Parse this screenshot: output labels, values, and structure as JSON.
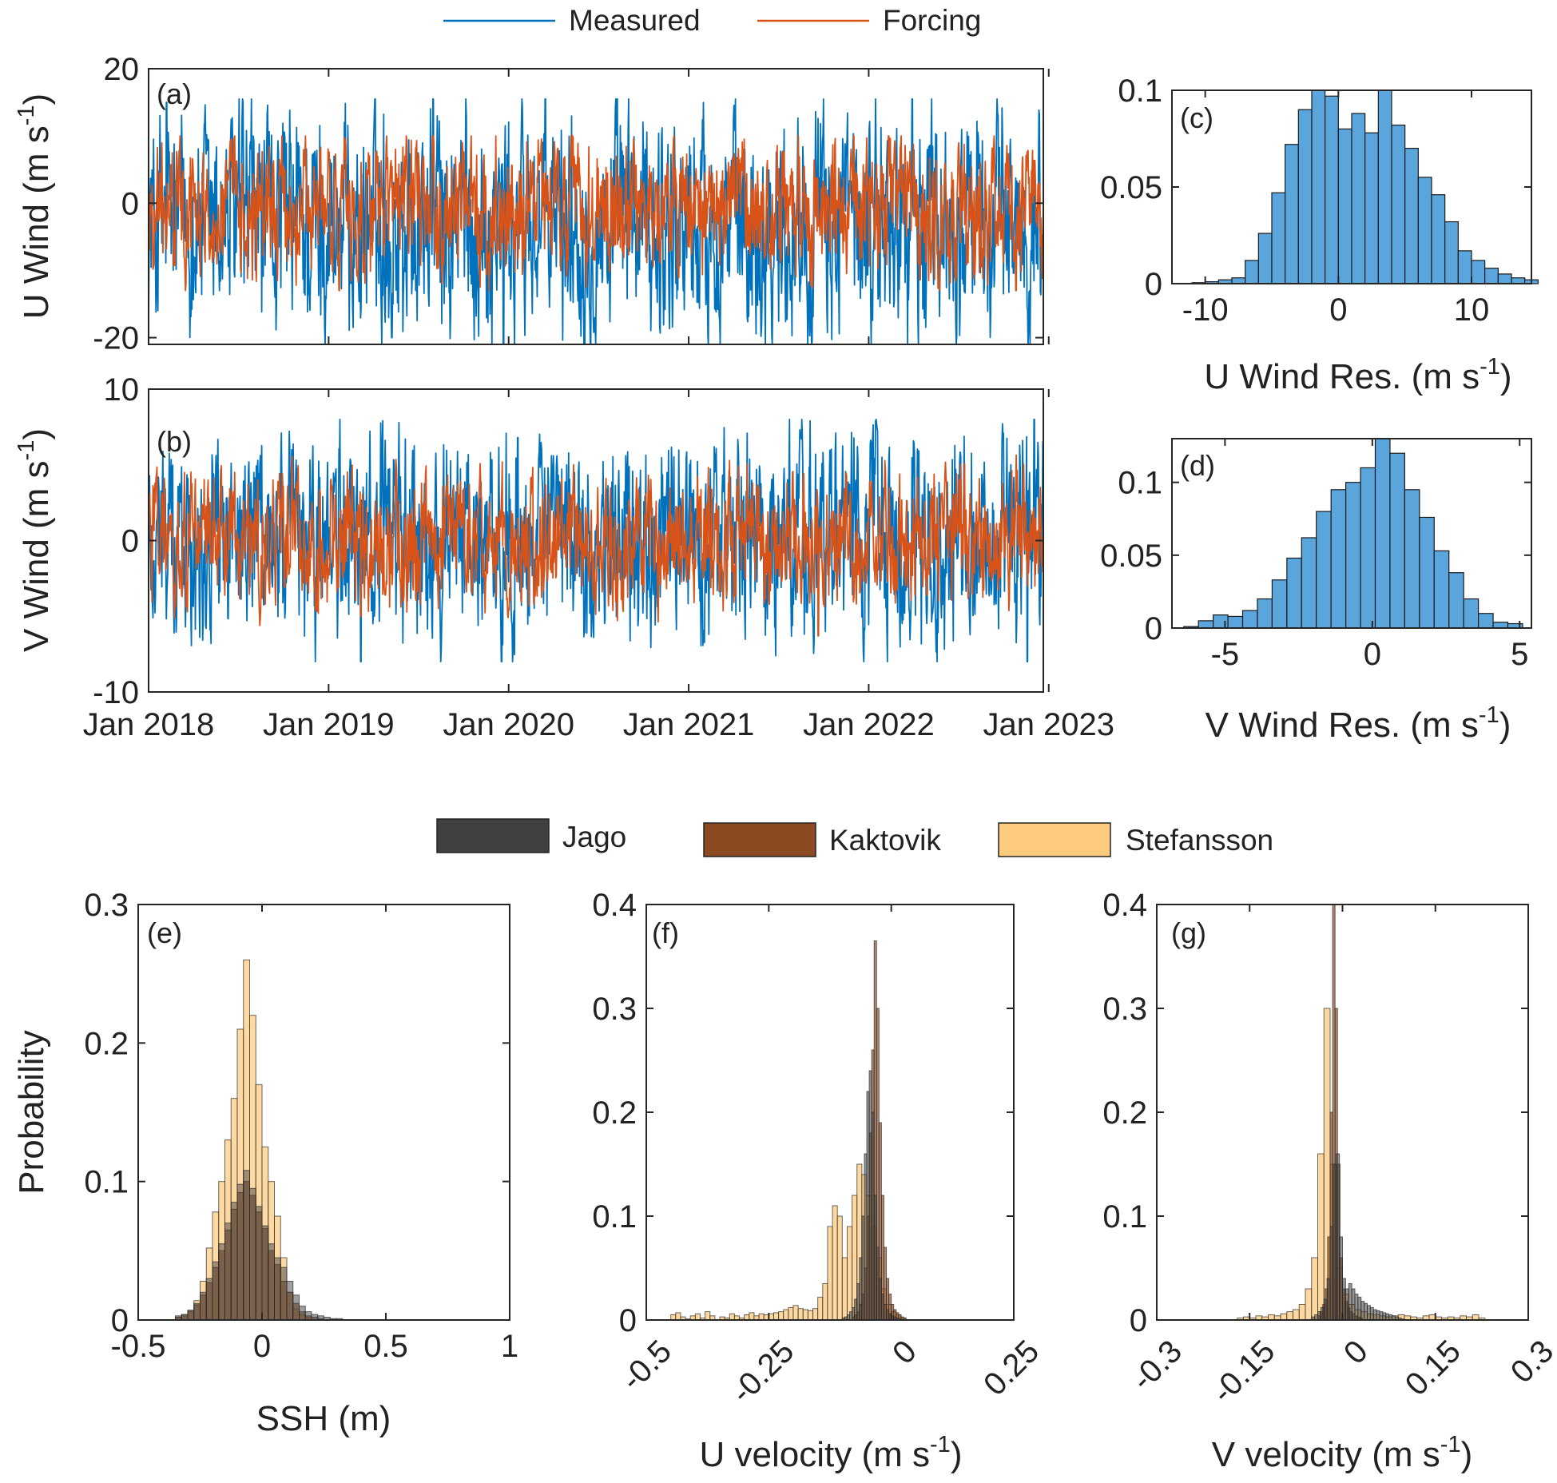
{
  "legend_top": {
    "items": [
      {
        "label": "Measured",
        "color": "#0072BD"
      },
      {
        "label": "Forcing",
        "color": "#D95319"
      }
    ]
  },
  "legend_bottom": {
    "items": [
      {
        "label": "Jago",
        "color": "#404040"
      },
      {
        "label": "Kaktovik",
        "color": "#8B4A22"
      },
      {
        "label": "Stefansson",
        "color": "#FDCB7E"
      }
    ]
  },
  "chart_data": [
    {
      "id": "a",
      "panel_label": "(a)",
      "type": "line",
      "ylabel_main": "U Wind (m s",
      "ylabel_sup": "-1",
      "ylabel_close": ")",
      "ylim": [
        -21,
        20
      ],
      "yticks": [
        {
          "v": -20,
          "label": "-20"
        },
        {
          "v": 0,
          "label": "0"
        },
        {
          "v": 20,
          "label": "20"
        }
      ],
      "x_range_years": [
        2018.0,
        2022.97
      ],
      "xtick_years": [
        2018,
        2019,
        2020,
        2021,
        2022,
        2023
      ],
      "series": [
        {
          "name": "Measured",
          "color": "#0072BD",
          "mean": -3,
          "amplitude": 14,
          "min": -21,
          "max": 15.5,
          "anomalies": [
            {
              "year": 2019.35,
              "value": -20
            },
            {
              "year": 2019.97,
              "value": -21
            },
            {
              "year": 2018.1,
              "value": 15
            },
            {
              "year": 2019.58,
              "value": 15.5
            }
          ]
        },
        {
          "name": "Forcing",
          "color": "#D95319",
          "mean": -1,
          "amplitude": 8,
          "min": -13,
          "max": 10
        }
      ]
    },
    {
      "id": "b",
      "panel_label": "(b)",
      "type": "line",
      "ylabel_main": "V Wind (m s",
      "ylabel_sup": "-1",
      "ylabel_close": ")",
      "ylim": [
        -10,
        10
      ],
      "yticks": [
        {
          "v": -10,
          "label": "-10"
        },
        {
          "v": 0,
          "label": "0"
        },
        {
          "v": 10,
          "label": "10"
        }
      ],
      "x_range_years": [
        2018.0,
        2022.97
      ],
      "xtick_years": [
        2018,
        2019,
        2020,
        2021,
        2022,
        2023
      ],
      "xtick_labels": [
        "Jan 2018",
        "Jan 2019",
        "Jan 2020",
        "Jan 2021",
        "Jan 2022",
        "Jan 2023"
      ],
      "series": [
        {
          "name": "Measured",
          "color": "#0072BD",
          "mean": 0,
          "amplitude": 5.5,
          "min": -8,
          "max": 8,
          "anomalies": [
            {
              "year": 2019.18,
              "value": -8
            },
            {
              "year": 2022.88,
              "value": -8
            },
            {
              "year": 2022.92,
              "value": 8
            },
            {
              "year": 2020.05,
              "value": 6.8
            }
          ]
        },
        {
          "name": "Forcing",
          "color": "#D95319",
          "mean": 0,
          "amplitude": 3.5,
          "min": -6.3,
          "max": 6,
          "anomalies": [
            {
              "year": 2021.72,
              "value": -6.3
            },
            {
              "year": 2019.18,
              "value": -5
            }
          ]
        }
      ]
    },
    {
      "id": "c",
      "panel_label": "(c)",
      "type": "histogram",
      "xlabel_main": "U Wind Res. (m s",
      "xlabel_sup": "-1",
      "xlabel_close": ")",
      "xlim": [
        -12.5,
        14.5
      ],
      "ylim": [
        0,
        0.1
      ],
      "xticks": [
        {
          "v": -10,
          "label": "-10"
        },
        {
          "v": 0,
          "label": "0"
        },
        {
          "v": 10,
          "label": "10"
        }
      ],
      "yticks": [
        {
          "v": 0,
          "label": "0"
        },
        {
          "v": 0.05,
          "label": "0.05"
        },
        {
          "v": 0.1,
          "label": "0.1"
        }
      ],
      "bin_start": -11,
      "bin_width": 1,
      "values": [
        0.0005,
        0.001,
        0.002,
        0.003,
        0.012,
        0.026,
        0.047,
        0.072,
        0.09,
        0.1,
        0.097,
        0.08,
        0.088,
        0.078,
        0.1,
        0.082,
        0.07,
        0.055,
        0.046,
        0.032,
        0.017,
        0.012,
        0.008,
        0.005,
        0.003,
        0.002
      ],
      "series_color": "#5AA6DC"
    },
    {
      "id": "d",
      "panel_label": "(d)",
      "type": "histogram",
      "xlabel_main": "V Wind Res. (m s",
      "xlabel_sup": "-1",
      "xlabel_close": ")",
      "xlim": [
        -6.8,
        5.4
      ],
      "ylim": [
        0,
        0.13
      ],
      "xticks": [
        {
          "v": -5,
          "label": "-5"
        },
        {
          "v": 0,
          "label": "0"
        },
        {
          "v": 5,
          "label": "5"
        }
      ],
      "yticks": [
        {
          "v": 0,
          "label": "0"
        },
        {
          "v": 0.05,
          "label": "0.05"
        },
        {
          "v": 0.1,
          "label": "0.1"
        }
      ],
      "bin_start": -6.4,
      "bin_width": 0.5,
      "values": [
        0.001,
        0.005,
        0.009,
        0.008,
        0.012,
        0.02,
        0.033,
        0.048,
        0.062,
        0.08,
        0.095,
        0.1,
        0.11,
        0.13,
        0.12,
        0.095,
        0.076,
        0.053,
        0.038,
        0.02,
        0.01,
        0.004,
        0.003
      ],
      "series_color": "#5AA6DC"
    },
    {
      "id": "e",
      "panel_label": "(e)",
      "type": "histogram",
      "ylabel": "Probability",
      "xlabel": "SSH (m)",
      "xlim": [
        -0.5,
        1
      ],
      "ylim": [
        0,
        0.3
      ],
      "xticks": [
        {
          "v": -0.5,
          "label": "-0.5"
        },
        {
          "v": 0,
          "label": "0"
        },
        {
          "v": 0.5,
          "label": "0.5"
        },
        {
          "v": 1,
          "label": "1"
        }
      ],
      "yticks": [
        {
          "v": 0,
          "label": "0"
        },
        {
          "v": 0.1,
          "label": "0.1"
        },
        {
          "v": 0.2,
          "label": "0.2"
        },
        {
          "v": 0.3,
          "label": "0.3"
        }
      ],
      "bin_start": -0.35,
      "bin_width": 0.025,
      "series": [
        {
          "name": "Stefansson",
          "color": "#FDCB7E",
          "opacity": 0.72,
          "values": [
            0.002,
            0.004,
            0.007,
            0.014,
            0.028,
            0.052,
            0.078,
            0.1,
            0.13,
            0.16,
            0.21,
            0.26,
            0.22,
            0.17,
            0.125,
            0.1,
            0.075,
            0.045,
            0.02,
            0.008,
            0.004,
            0.002
          ]
        },
        {
          "name": "Kaktovik",
          "color": "#8B4A22",
          "opacity": 0.6,
          "values": [
            0.002,
            0.003,
            0.006,
            0.011,
            0.018,
            0.027,
            0.038,
            0.05,
            0.065,
            0.08,
            0.092,
            0.1,
            0.09,
            0.078,
            0.066,
            0.05,
            0.04,
            0.028,
            0.02,
            0.012,
            0.006,
            0.003,
            0.002,
            0.001
          ]
        },
        {
          "name": "Jago",
          "color": "#404040",
          "opacity": 0.5,
          "values": [
            0.003,
            0.004,
            0.007,
            0.012,
            0.02,
            0.03,
            0.042,
            0.055,
            0.07,
            0.085,
            0.098,
            0.108,
            0.095,
            0.082,
            0.068,
            0.055,
            0.045,
            0.038,
            0.028,
            0.018,
            0.01,
            0.006,
            0.004,
            0.003,
            0.002,
            0.001,
            0.001
          ]
        }
      ]
    },
    {
      "id": "f",
      "panel_label": "(f)",
      "type": "histogram",
      "xlabel_main": "U velocity (m s",
      "xlabel_sup": "-1",
      "xlabel_close": ")",
      "xlim": [
        -0.5,
        0.25
      ],
      "ylim": [
        0,
        0.4
      ],
      "xticks": [
        {
          "v": -0.5,
          "label": "-0.5"
        },
        {
          "v": -0.25,
          "label": "-0.25"
        },
        {
          "v": 0,
          "label": "0"
        },
        {
          "v": 0.25,
          "label": "0.25"
        }
      ],
      "yticks": [
        {
          "v": 0,
          "label": "0"
        },
        {
          "v": 0.1,
          "label": "0.1"
        },
        {
          "v": 0.2,
          "label": "0.2"
        },
        {
          "v": 0.3,
          "label": "0.3"
        },
        {
          "v": 0.4,
          "label": "0.4"
        }
      ],
      "series": [
        {
          "name": "Stefansson",
          "color": "#FDCB7E",
          "opacity": 0.75,
          "bin_start": -0.45,
          "bin_width": 0.01,
          "values": [
            0.005,
            0.007,
            0.003,
            0.001,
            0.004,
            0.006,
            0.002,
            0.008,
            0.004,
            0.0,
            0.003,
            0.002,
            0.006,
            0.004,
            0.002,
            0.005,
            0.007,
            0.004,
            0.006,
            0.005,
            0.006,
            0.007,
            0.008,
            0.01,
            0.012,
            0.014,
            0.011,
            0.01,
            0.009,
            0.011,
            0.022,
            0.035,
            0.09,
            0.11,
            0.1,
            0.06,
            0.09,
            0.12,
            0.15,
            0.14,
            0.12,
            0.09,
            0.06,
            0.03,
            0.015,
            0.008,
            0.005,
            0.002
          ]
        },
        {
          "name": "Kaktovik",
          "color": "#8B4A22",
          "opacity": 0.65,
          "bin_start": -0.08,
          "bin_width": 0.005,
          "values": [
            0.003,
            0.005,
            0.008,
            0.015,
            0.025,
            0.05,
            0.1,
            0.18,
            0.26,
            0.365,
            0.3,
            0.19,
            0.12,
            0.07,
            0.04,
            0.025,
            0.015,
            0.01,
            0.007,
            0.005,
            0.003,
            0.002
          ]
        },
        {
          "name": "Jago",
          "color": "#404040",
          "opacity": 0.55,
          "bin_start": -0.1,
          "bin_width": 0.005,
          "values": [
            0.002,
            0.003,
            0.005,
            0.008,
            0.012,
            0.02,
            0.035,
            0.06,
            0.1,
            0.16,
            0.22,
            0.24,
            0.2,
            0.12,
            0.07,
            0.04,
            0.025,
            0.015,
            0.01,
            0.006,
            0.004,
            0.003,
            0.002,
            0.001
          ]
        }
      ]
    },
    {
      "id": "g",
      "panel_label": "(g)",
      "type": "histogram",
      "xlabel_main": "V velocity (m s",
      "xlabel_sup": "-1",
      "xlabel_close": ")",
      "xlim": [
        -0.3,
        0.3
      ],
      "ylim": [
        0,
        0.4
      ],
      "xticks": [
        {
          "v": -0.3,
          "label": "-0.3"
        },
        {
          "v": -0.15,
          "label": "-0.15"
        },
        {
          "v": 0,
          "label": "0"
        },
        {
          "v": 0.15,
          "label": "0.15"
        },
        {
          "v": 0.3,
          "label": "0.3"
        }
      ],
      "yticks": [
        {
          "v": 0,
          "label": "0"
        },
        {
          "v": 0.1,
          "label": "0.1"
        },
        {
          "v": 0.2,
          "label": "0.2"
        },
        {
          "v": 0.3,
          "label": "0.3"
        },
        {
          "v": 0.4,
          "label": "0.4"
        }
      ],
      "series": [
        {
          "name": "Stefansson",
          "color": "#FDCB7E",
          "opacity": 0.75,
          "bin_start": -0.17,
          "bin_width": 0.01,
          "values": [
            0.002,
            0.003,
            0.002,
            0.004,
            0.003,
            0.005,
            0.004,
            0.006,
            0.008,
            0.01,
            0.015,
            0.03,
            0.06,
            0.16,
            0.3,
            0.15,
            0.05,
            0.025,
            0.015,
            0.01,
            0.008,
            0.006,
            0.005,
            0.004,
            0.003,
            0.004,
            0.005,
            0.004,
            0.003,
            0.002,
            0.004,
            0.005,
            0.003,
            0.002,
            0.003,
            0.002,
            0.004,
            0.003,
            0.005,
            0.002
          ]
        },
        {
          "name": "Kaktovik",
          "color": "#8B4A22",
          "opacity": 0.65,
          "bin_start": -0.04,
          "bin_width": 0.004,
          "values": [
            0.004,
            0.008,
            0.015,
            0.03,
            0.08,
            0.2,
            0.4,
            0.3,
            0.15,
            0.06,
            0.03,
            0.018,
            0.012,
            0.008,
            0.006,
            0.004,
            0.003,
            0.002
          ]
        },
        {
          "name": "Jago",
          "color": "#404040",
          "opacity": 0.55,
          "bin_start": -0.05,
          "bin_width": 0.005,
          "values": [
            0.003,
            0.005,
            0.008,
            0.012,
            0.02,
            0.04,
            0.09,
            0.15,
            0.16,
            0.08,
            0.04,
            0.03,
            0.035,
            0.03,
            0.025,
            0.022,
            0.018,
            0.016,
            0.014,
            0.012,
            0.01,
            0.009,
            0.008,
            0.007,
            0.006,
            0.005,
            0.004,
            0.003,
            0.002,
            0.001
          ]
        }
      ]
    }
  ]
}
